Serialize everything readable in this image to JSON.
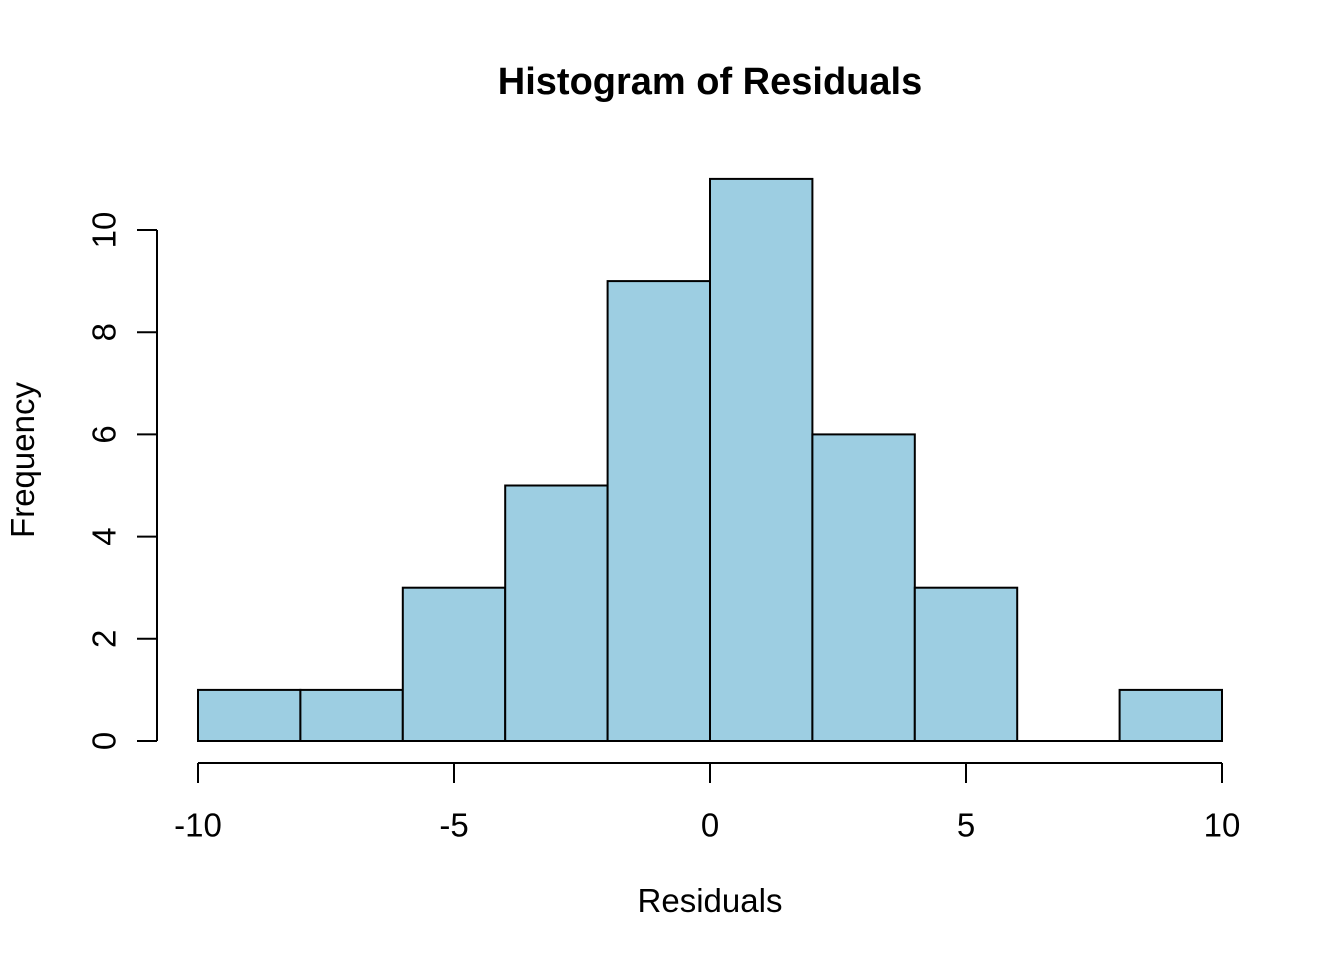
{
  "figure": {
    "background": "#ffffff"
  },
  "chart_data": {
    "type": "histogram",
    "title": "Histogram of Residuals",
    "xlabel": "Residuals",
    "ylabel": "Frequency",
    "bin_edges": [
      -10,
      -8,
      -6,
      -4,
      -2,
      0,
      2,
      4,
      6,
      8,
      10
    ],
    "counts": [
      1,
      1,
      3,
      5,
      9,
      11,
      6,
      3,
      0,
      1
    ],
    "x_ticks": [
      -10,
      -5,
      0,
      5,
      10
    ],
    "x_tick_labels": [
      "-10",
      "-5",
      "0",
      "5",
      "10"
    ],
    "y_ticks": [
      0,
      2,
      4,
      6,
      8,
      10
    ],
    "y_tick_labels": [
      "0",
      "2",
      "4",
      "6",
      "8",
      "10"
    ],
    "xlim": [
      -10,
      10
    ],
    "ylim": [
      0,
      11
    ],
    "grid": "off",
    "legend": "none",
    "bar_fill": "#9DCEE2",
    "bar_border": "#000000",
    "axis_color": "#000000",
    "text_color": "#000000"
  }
}
